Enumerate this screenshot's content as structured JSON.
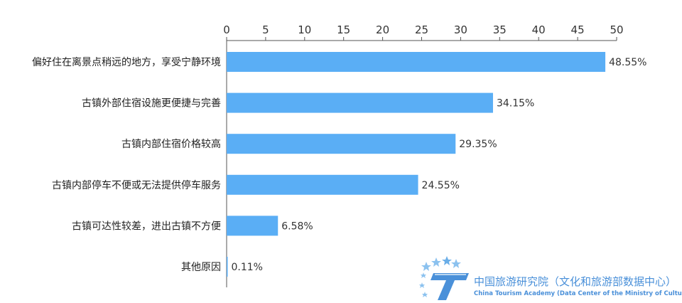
{
  "chart_data": {
    "type": "bar",
    "orientation": "horizontal",
    "categories": [
      "偏好住在离景点稍远的地方，享受宁静环境",
      "古镇外部住宿设施更便捷与完善",
      "古镇内部住宿价格较高",
      "古镇内部停车不便或无法提供停车服务",
      "古镇可达性较差，进出古镇不方便",
      "其他原因"
    ],
    "values": [
      48.55,
      34.15,
      29.35,
      24.55,
      6.58,
      0.11
    ],
    "data_labels": [
      "48.55%",
      "34.15%",
      "29.35%",
      "24.55%",
      "6.58%",
      "0.11%"
    ],
    "xlim": [
      0,
      50
    ],
    "xticks": [
      0,
      5,
      10,
      15,
      20,
      25,
      30,
      35,
      40,
      45,
      50
    ],
    "x_axis_position": "top",
    "grid": false,
    "bar_color": "#5aaef5",
    "title": "",
    "xlabel": "",
    "ylabel": ""
  },
  "watermark": {
    "name_cn": "中国旅游研究院（文化和旅游部数据中心）",
    "name_en": "China Tourism Academy (Data Center of the Ministry of Culture and Tourism)",
    "logo_icon": "star-t-logo-icon",
    "color": "#4a90d9"
  }
}
